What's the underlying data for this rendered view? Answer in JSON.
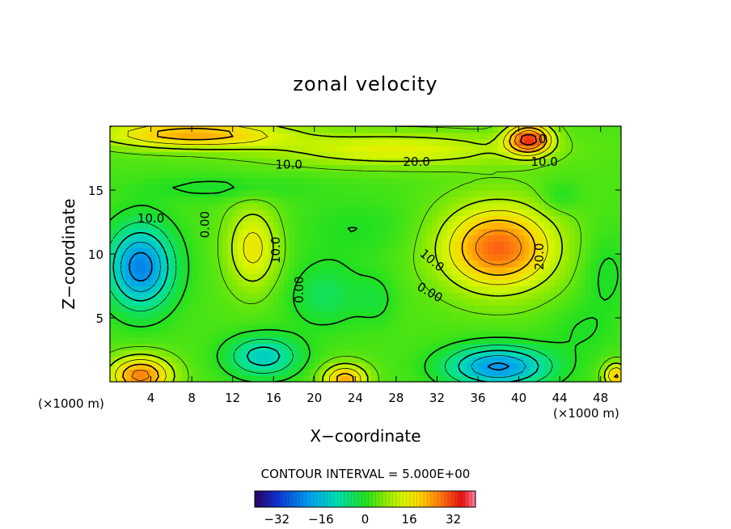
{
  "chart_data": {
    "type": "heatmap",
    "title": "zonal velocity",
    "xlabel": "X−coordinate",
    "ylabel": "Z−coordinate",
    "x_unit_left": "(×1000 m)",
    "x_unit_right": "(×1000 m)",
    "xlim": [
      0,
      50
    ],
    "ylim": [
      0,
      20
    ],
    "x_ticks": [
      4,
      8,
      12,
      16,
      20,
      24,
      28,
      32,
      36,
      40,
      44,
      48
    ],
    "y_ticks": [
      5,
      10,
      15
    ],
    "contour_interval_text": "CONTOUR INTERVAL = 5.000E+00",
    "colorbar": {
      "min": -40,
      "max": 40,
      "ticks": [
        -32,
        -16,
        0,
        16,
        32
      ],
      "tick_labels": [
        "−32",
        "−16",
        "0",
        "16",
        "32"
      ]
    },
    "contour_labels": [
      {
        "text": "10.0",
        "x": 17.5,
        "y": 17.0,
        "rotate": 0
      },
      {
        "text": "20.0",
        "x": 30.0,
        "y": 17.2,
        "rotate": 0
      },
      {
        "text": "10.0",
        "x": 42.5,
        "y": 17.2,
        "rotate": 0
      },
      {
        "text": "0",
        "x": 42.3,
        "y": 19.0,
        "rotate": 0
      },
      {
        "text": "10.0",
        "x": 4.0,
        "y": 12.8,
        "rotate": 0
      },
      {
        "text": "0.00",
        "x": 9.3,
        "y": 12.3,
        "rotate": -90
      },
      {
        "text": "10.0",
        "x": 16.2,
        "y": 10.3,
        "rotate": -90
      },
      {
        "text": "0.00",
        "x": 18.5,
        "y": 7.2,
        "rotate": -90
      },
      {
        "text": "10.0",
        "x": 31.5,
        "y": 9.5,
        "rotate": 40
      },
      {
        "text": "0.00",
        "x": 31.3,
        "y": 7.0,
        "rotate": 30
      },
      {
        "text": "20.0",
        "x": 42.0,
        "y": 9.8,
        "rotate": -90
      }
    ],
    "features": [
      {
        "x": 41,
        "y": 19,
        "sx": 2.2,
        "sy": 1.2,
        "a": 28
      },
      {
        "x": 28,
        "y": 18.2,
        "sx": 12,
        "sy": 1.3,
        "a": 12
      },
      {
        "x": 8,
        "y": 19.4,
        "sx": 9,
        "sy": 1.1,
        "a": 20
      },
      {
        "x": 38,
        "y": 10.5,
        "sx": 5.5,
        "sy": 3.3,
        "a": 26
      },
      {
        "x": 14,
        "y": 10.5,
        "sx": 2.5,
        "sy": 3.2,
        "a": 14
      },
      {
        "x": 3,
        "y": 9,
        "sx": 3.2,
        "sy": 3.2,
        "a": -26
      },
      {
        "x": 21,
        "y": 6.8,
        "sx": 3.5,
        "sy": 2.5,
        "a": -7
      },
      {
        "x": 26,
        "y": 6.5,
        "sx": 2,
        "sy": 2,
        "a": -4
      },
      {
        "x": 38,
        "y": 1.2,
        "sx": 5,
        "sy": 1.6,
        "a": -24
      },
      {
        "x": 15,
        "y": 2,
        "sx": 3.5,
        "sy": 1.6,
        "a": -16
      },
      {
        "x": 23,
        "y": 0.2,
        "sx": 2.2,
        "sy": 1.2,
        "a": 20
      },
      {
        "x": 3,
        "y": 0.5,
        "sx": 3,
        "sy": 1.5,
        "a": 24
      },
      {
        "x": 48.5,
        "y": 8.5,
        "sx": 2.5,
        "sy": 3.5,
        "a": -4
      },
      {
        "x": 49.5,
        "y": 0.5,
        "sx": 1.2,
        "sy": 1,
        "a": 18
      },
      {
        "x": 11,
        "y": 15.2,
        "sx": 8,
        "sy": 1,
        "a": -4
      },
      {
        "x": 44,
        "y": 14.5,
        "sx": 2,
        "sy": 1.2,
        "a": -4
      },
      {
        "x": 24,
        "y": 12,
        "sx": 6,
        "sy": 2.5,
        "a": -3
      },
      {
        "x": 46,
        "y": 4,
        "sx": 3,
        "sy": 2,
        "a": -3
      }
    ]
  }
}
